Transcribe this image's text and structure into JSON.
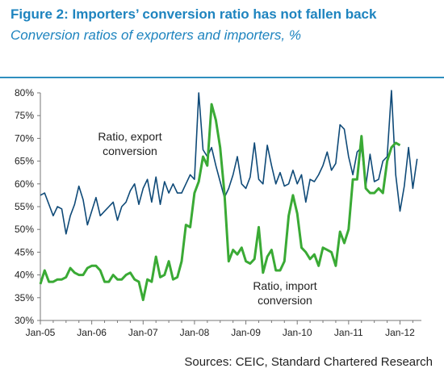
{
  "header": {
    "title": "Figure 2: Importers’ conversion ratio has not fallen back",
    "subtitle": "Conversion ratios of exporters and importers, %"
  },
  "footer": {
    "source": "Sources: CEIC, Standard Chartered Research"
  },
  "colors": {
    "title": "#1e84bf",
    "rule": "#2f8fbf",
    "export_line": "#0f4a78",
    "import_line": "#3aaa35",
    "axis": "#777777"
  },
  "chart_data": {
    "type": "line",
    "title": "",
    "xlabel": "",
    "ylabel": "",
    "ylim": [
      30,
      80
    ],
    "y_ticks": [
      "30%",
      "35%",
      "40%",
      "45%",
      "50%",
      "55%",
      "60%",
      "65%",
      "70%",
      "75%",
      "80%"
    ],
    "x_ticks": [
      "Jan-05",
      "Jan-06",
      "Jan-07",
      "Jan-08",
      "Jan-09",
      "Jan-10",
      "Jan-11",
      "Jan-12"
    ],
    "x_start": "Jan-05",
    "grid": false,
    "annotations": [
      {
        "series": "export",
        "lines": [
          "Ratio, export",
          "conversion"
        ]
      },
      {
        "series": "import",
        "lines": [
          "Ratio, import",
          "conversion"
        ]
      }
    ],
    "series": [
      {
        "name": "Ratio, export conversion",
        "key": "export",
        "values": [
          57.5,
          58,
          55.5,
          53,
          55,
          54.5,
          49,
          53,
          55.5,
          59.5,
          56.5,
          51,
          54,
          57,
          53,
          54,
          55,
          56,
          52,
          55,
          56,
          58.5,
          60,
          55.5,
          59,
          61,
          56,
          61.5,
          55.5,
          60.5,
          58,
          60,
          58,
          58,
          60,
          62,
          61,
          80,
          67.5,
          66,
          68,
          64,
          60.5,
          57,
          59,
          62,
          66,
          60,
          59,
          61.5,
          69,
          61,
          60,
          68.5,
          64,
          60,
          62.5,
          59.5,
          60,
          63,
          60,
          62,
          56,
          61,
          60.5,
          62,
          64,
          67,
          63,
          64.5,
          73,
          72,
          66,
          62,
          67,
          68,
          59.5,
          66.5,
          60.5,
          61,
          65,
          66,
          80.5,
          62,
          54,
          59.5,
          68,
          59,
          65.5
        ]
      },
      {
        "name": "Ratio, import conversion",
        "key": "import",
        "values": [
          38,
          41,
          38.5,
          38.5,
          39,
          39,
          39.5,
          41.5,
          40.5,
          40,
          40,
          41.5,
          42,
          42,
          41,
          38.5,
          38.5,
          40,
          39,
          39,
          40,
          40.5,
          39,
          38.5,
          34.5,
          39,
          38.5,
          44,
          39.5,
          40,
          43,
          39,
          39.5,
          43,
          51,
          50.5,
          58,
          60.5,
          66,
          64,
          77.5,
          74,
          68,
          58,
          43,
          45.5,
          44.5,
          46,
          43,
          42.5,
          43.5,
          50.5,
          40.5,
          44,
          45.5,
          41,
          41,
          43,
          53,
          57.5,
          53.5,
          46,
          45,
          43.5,
          44.5,
          42,
          46,
          45.5,
          45,
          42,
          49.5,
          47,
          50,
          61,
          61,
          70.5,
          59,
          58,
          58,
          59,
          58,
          65,
          68,
          69,
          68.5
        ]
      }
    ]
  }
}
